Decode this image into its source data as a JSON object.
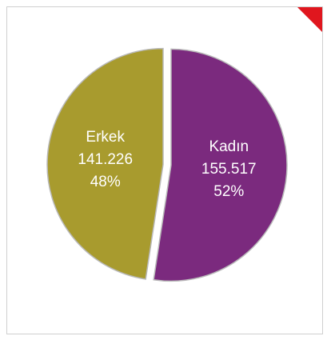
{
  "chart_data": {
    "type": "pie",
    "categories": [
      "Kadın",
      "Erkek"
    ],
    "values": [
      155517,
      141226
    ],
    "value_labels": [
      "155.517",
      "141.226"
    ],
    "percents": [
      52,
      48
    ],
    "percent_labels": [
      "52%",
      "48%"
    ],
    "colors": [
      "#7b2a7e",
      "#a89b2e"
    ]
  }
}
